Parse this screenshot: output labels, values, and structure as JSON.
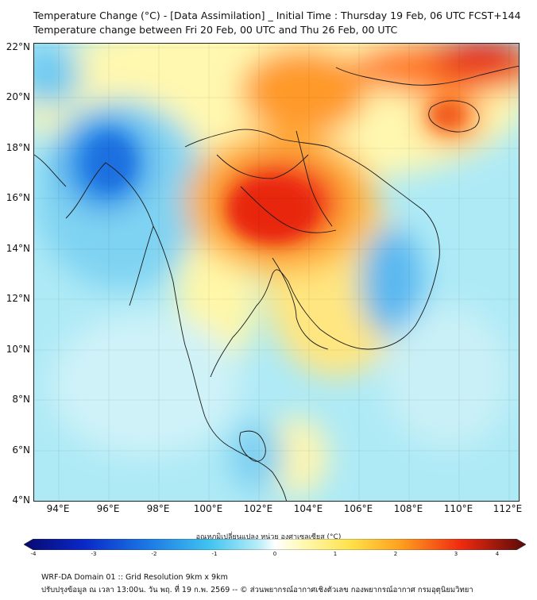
{
  "title": {
    "line1": "Temperature Change (°C) - [Data Assimilation] _ Initial Time : Thursday 19 Feb, 06 UTC FCST+144",
    "line2": "Temperature change between Fri 20 Feb, 00 UTC and Thu 26 Feb, 00 UTC"
  },
  "map": {
    "latitude_labels": [
      "22°N",
      "20°N",
      "18°N",
      "16°N",
      "14°N",
      "12°N",
      "10°N",
      "8°N",
      "6°N",
      "4°N"
    ],
    "longitude_labels": [
      "94°E",
      "96°E",
      "98°E",
      "100°E",
      "102°E",
      "104°E",
      "106°E",
      "108°E",
      "110°E",
      "112°E"
    ],
    "extent": {
      "lon_min": 93,
      "lon_max": 112.4,
      "lat_min": 4,
      "lat_max": 22.2
    }
  },
  "colorbar": {
    "label": "อุณหภูมิเปลี่ยนแปลง หน่วย องศาเซลเซียส (°C)",
    "ticks": [
      "-4",
      "-3",
      "-2",
      "-1",
      "0",
      "1",
      "2",
      "3",
      "4"
    ],
    "range": [
      -4,
      4
    ]
  },
  "footer": {
    "line1": "WRF-DA Domain 01 :: Grid Resolution 9km x 9km",
    "line2": "ปรับปรุงข้อมูล ณ เวลา 13:00น. วัน พฤ. ที่ 19 ก.พ. 2569 -- © ส่วนพยากรณ์อากาศเชิงตัวเลข กองพยากรณ์อากาศ กรมอุตุนิยมวิทยา"
  }
}
